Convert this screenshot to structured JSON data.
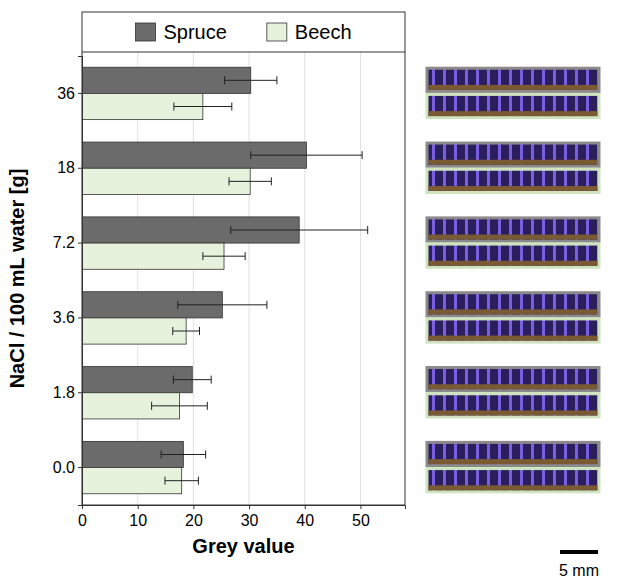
{
  "chart_data": {
    "type": "bar",
    "orientation": "horizontal",
    "categories": [
      "36",
      "18",
      "7.2",
      "3.6",
      "1.8",
      "0.0"
    ],
    "series": [
      {
        "name": "Spruce",
        "color": "#6b6b6b",
        "values": [
          30.3,
          40.3,
          39.0,
          25.2,
          19.8,
          18.2
        ],
        "errors": [
          4.7,
          10.0,
          12.3,
          8.0,
          3.4,
          4.0
        ]
      },
      {
        "name": "Beech",
        "color": "#e6f2dc",
        "values": [
          21.7,
          30.2,
          25.5,
          18.7,
          17.5,
          17.9
        ],
        "errors": [
          5.2,
          3.8,
          3.8,
          2.4,
          5.0,
          3.0
        ]
      }
    ],
    "xlabel": "Grey value",
    "ylabel": "NaCl / 100 mL water [g]",
    "xlim": [
      0,
      58
    ],
    "xticks": [
      0,
      10,
      20,
      30,
      40,
      50
    ],
    "grid": true,
    "legend": "top",
    "annotations": [
      "5 mm"
    ]
  }
}
